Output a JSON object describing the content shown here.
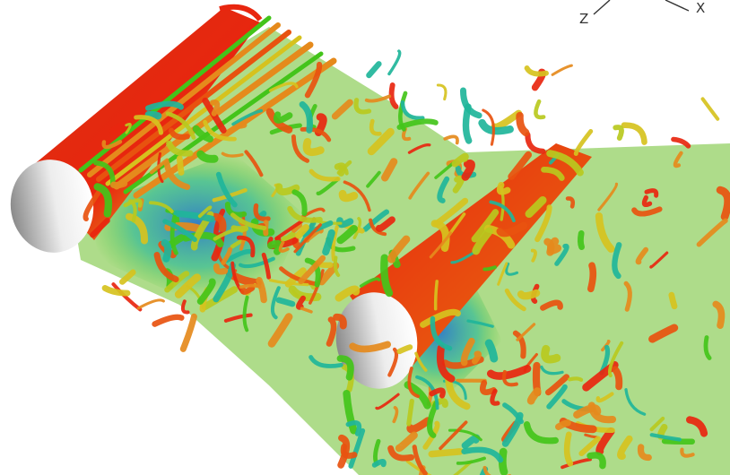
{
  "axis_triad": {
    "z_label": "Z",
    "x_label": "X"
  },
  "colors": {
    "background": "#ffffff",
    "cylinder_face_light": "#ffffff",
    "cylinder_face_dark": "#8a8a8a",
    "surface_red": "#e8260f",
    "surface_orange": "#e58a1c",
    "surface_yellow": "#d6c21e",
    "surface_green": "#43c41a",
    "surface_teal": "#1fb59a",
    "surface_blue": "#1f6fd0",
    "axis_line": "#333333"
  },
  "scene": {
    "content": "two-cylinder-wake-vortex-isosurfaces",
    "objects": [
      "upstream-cylinder",
      "downstream-cylinder",
      "wake-vortex-structures"
    ]
  }
}
